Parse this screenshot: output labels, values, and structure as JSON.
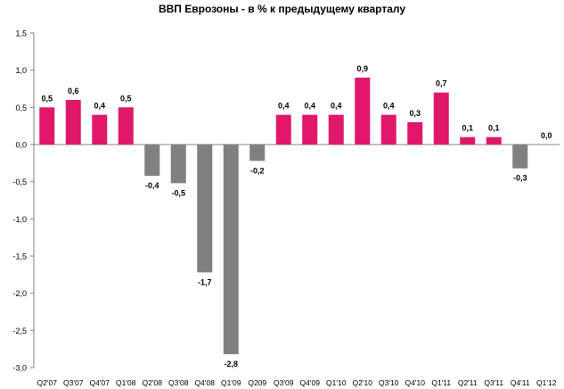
{
  "chart_data": {
    "type": "bar",
    "title": "ВВП Еврозоны  - в % к предыдущему  кварталу",
    "xlabel": "",
    "ylabel": "",
    "ylim": [
      -3.0,
      1.5
    ],
    "ytick_step": 0.5,
    "yticks": [
      "1,5",
      "1,0",
      "0,5",
      "0,0",
      "-0,5",
      "-1,0",
      "-1,5",
      "-2,0",
      "-2,5",
      "-3,0"
    ],
    "grid": false,
    "legend": "none",
    "positive_color": "#E0186C",
    "negative_color": "#808080",
    "categories": [
      "Q2'07",
      "Q3'07",
      "Q4'07",
      "Q1'08",
      "Q2'08",
      "Q3'08",
      "Q4'08",
      "Q1'09",
      "Q209",
      "Q3'09",
      "Q4'09",
      "Q1'10",
      "Q2'10",
      "Q3'10",
      "Q4'10",
      "Q1'11",
      "Q2'11",
      "Q3'11",
      "Q4'11",
      "Q1'12"
    ],
    "values": [
      0.5,
      0.6,
      0.4,
      0.5,
      -0.42,
      -0.52,
      -1.72,
      -2.82,
      -0.22,
      0.4,
      0.4,
      0.4,
      0.9,
      0.4,
      0.3,
      0.7,
      0.1,
      0.1,
      -0.32,
      0.0
    ],
    "data_labels": [
      "0,5",
      "0,6",
      "0,4",
      "0,5",
      "-0,4",
      "-0,5",
      "-1,7",
      "-2,8",
      "-0,2",
      "0,4",
      "0,4",
      "0,4",
      "0,9",
      "0,4",
      "0,3",
      "0,7",
      "0,1",
      "0,1",
      "-0,3",
      "0,0"
    ]
  }
}
